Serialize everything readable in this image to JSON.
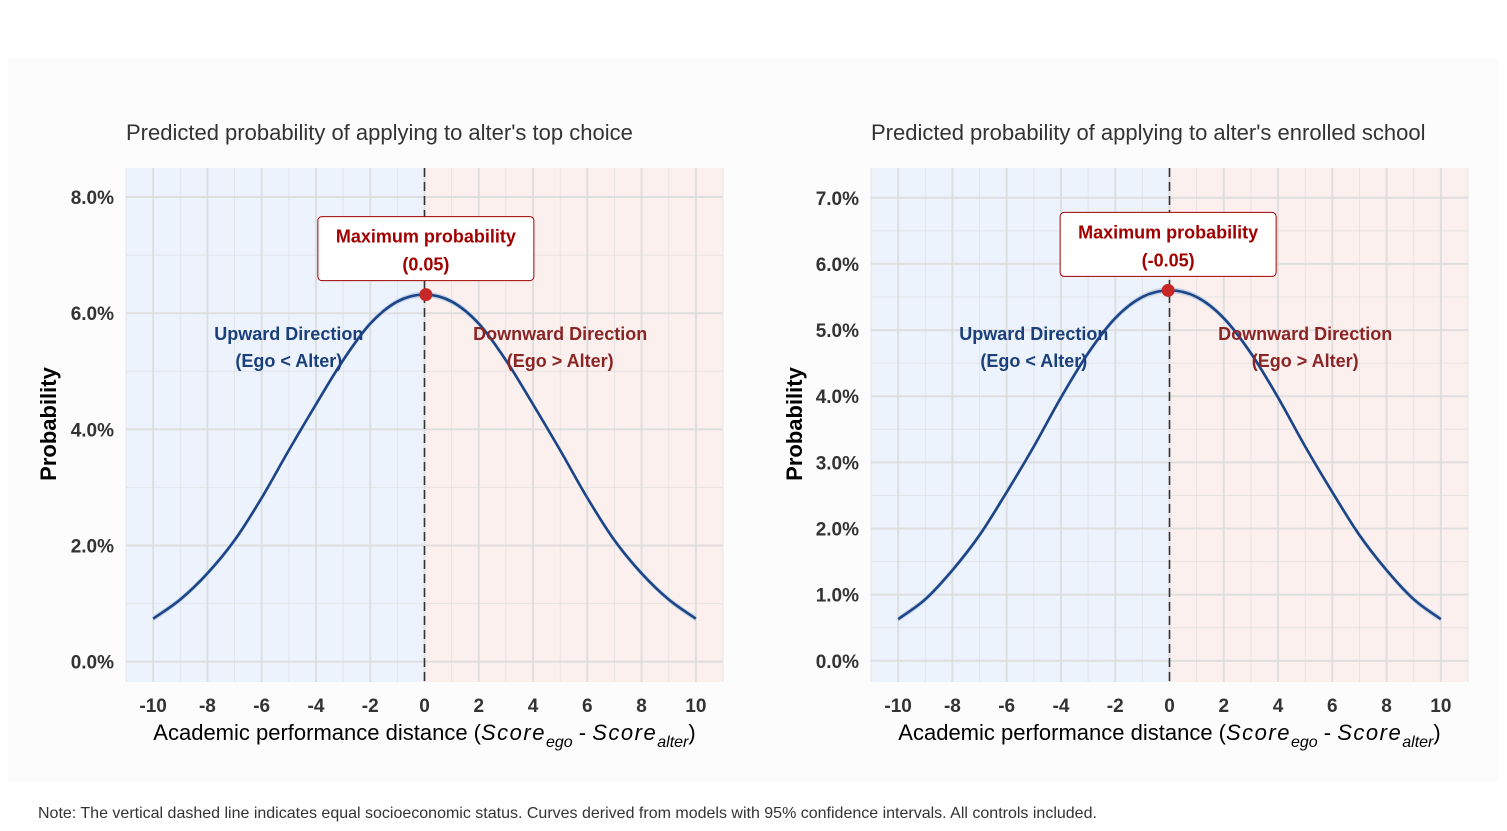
{
  "note": "Note: The vertical dashed line indicates equal socioeconomic status. Curves derived from models with 95% confidence intervals. All controls included.",
  "colors": {
    "curve": "#1c4587",
    "ci_band": "#c2cfe4",
    "upward_region": "#ecf3fd",
    "downward_region": "#fbf0ee",
    "max_point": "#c62828",
    "annotation_text": "#a00000",
    "annotation_border": "#a00000"
  },
  "chart_data": [
    {
      "type": "line",
      "title": "Predicted probability of applying to alter's top choice",
      "ylabel": "Probability",
      "xlabel": {
        "prefix": "Academic performance distance (",
        "score": "Score",
        "ego_sub": "ego",
        "minus": " - ",
        "alter_sub": "alter",
        "suffix": ")"
      },
      "xlim": [
        -11,
        11
      ],
      "ylim": [
        -0.0035,
        0.085
      ],
      "x_ticks": [
        -10,
        -8,
        -6,
        -4,
        -2,
        0,
        2,
        4,
        6,
        8,
        10
      ],
      "x_tick_labels": [
        "-10",
        "-8",
        "-6",
        "-4",
        "-2",
        "0",
        "2",
        "4",
        "6",
        "8",
        "10"
      ],
      "y_ticks": [
        0,
        0.02,
        0.04,
        0.06,
        0.08
      ],
      "y_tick_labels": [
        "0.0%",
        "2.0%",
        "4.0%",
        "6.0%",
        "8.0%"
      ],
      "grid": true,
      "reference_line_x": 0,
      "series": [
        {
          "x": [
            -10,
            -9,
            -8,
            -7,
            -6,
            -5,
            -4,
            -3,
            -2,
            -1,
            0,
            1,
            2,
            3,
            4,
            5,
            6,
            7,
            8,
            9,
            10
          ],
          "y": [
            0.0074,
            0.0107,
            0.0152,
            0.0209,
            0.0282,
            0.0364,
            0.0443,
            0.0519,
            0.0582,
            0.062,
            0.0632,
            0.062,
            0.0582,
            0.0519,
            0.0443,
            0.0364,
            0.0282,
            0.0209,
            0.0152,
            0.0107,
            0.0074
          ],
          "ci_halfwidth": 0.0005
        }
      ],
      "max_point": {
        "x": 0.05,
        "y": 0.0632
      },
      "annotation": {
        "line1": "Maximum probability",
        "line2": "(0.05)"
      },
      "region_labels": {
        "upward": {
          "line1": "Upward Direction",
          "line2": "(Ego < Alter)"
        },
        "downward": {
          "line1": "Downward Direction",
          "line2": "(Ego > Alter)"
        }
      }
    },
    {
      "type": "line",
      "title": "Predicted probability of applying to alter's enrolled school",
      "ylabel": "Probability",
      "xlabel": {
        "prefix": "Academic performance distance (",
        "score": "Score",
        "ego_sub": "ego",
        "minus": " - ",
        "alter_sub": "alter",
        "suffix": ")"
      },
      "xlim": [
        -11,
        11
      ],
      "ylim": [
        -0.0032,
        0.0745
      ],
      "x_ticks": [
        -10,
        -8,
        -6,
        -4,
        -2,
        0,
        2,
        4,
        6,
        8,
        10
      ],
      "x_tick_labels": [
        "-10",
        "-8",
        "-6",
        "-4",
        "-2",
        "0",
        "2",
        "4",
        "6",
        "8",
        "10"
      ],
      "y_ticks": [
        0,
        0.01,
        0.02,
        0.03,
        0.04,
        0.05,
        0.06,
        0.07
      ],
      "y_tick_labels": [
        "0.0%",
        "1.0%",
        "2.0%",
        "3.0%",
        "4.0%",
        "5.0%",
        "6.0%",
        "7.0%"
      ],
      "grid": true,
      "reference_line_x": 0,
      "series": [
        {
          "x": [
            -10,
            -9,
            -8,
            -7,
            -6,
            -5,
            -4,
            -3,
            -2,
            -1,
            0,
            1,
            2,
            3,
            4,
            5,
            6,
            7,
            8,
            9,
            10
          ],
          "y": [
            0.0063,
            0.0093,
            0.0137,
            0.019,
            0.0255,
            0.0324,
            0.0398,
            0.0465,
            0.0518,
            0.055,
            0.056,
            0.055,
            0.0518,
            0.0465,
            0.0398,
            0.0324,
            0.0255,
            0.019,
            0.0137,
            0.0093,
            0.0063
          ],
          "ci_halfwidth": 0.00045
        }
      ],
      "max_point": {
        "x": -0.05,
        "y": 0.056
      },
      "annotation": {
        "line1": "Maximum probability",
        "line2": "(-0.05)"
      },
      "region_labels": {
        "upward": {
          "line1": "Upward Direction",
          "line2": "(Ego < Alter)"
        },
        "downward": {
          "line1": "Downward Direction",
          "line2": "(Ego > Alter)"
        }
      }
    }
  ]
}
